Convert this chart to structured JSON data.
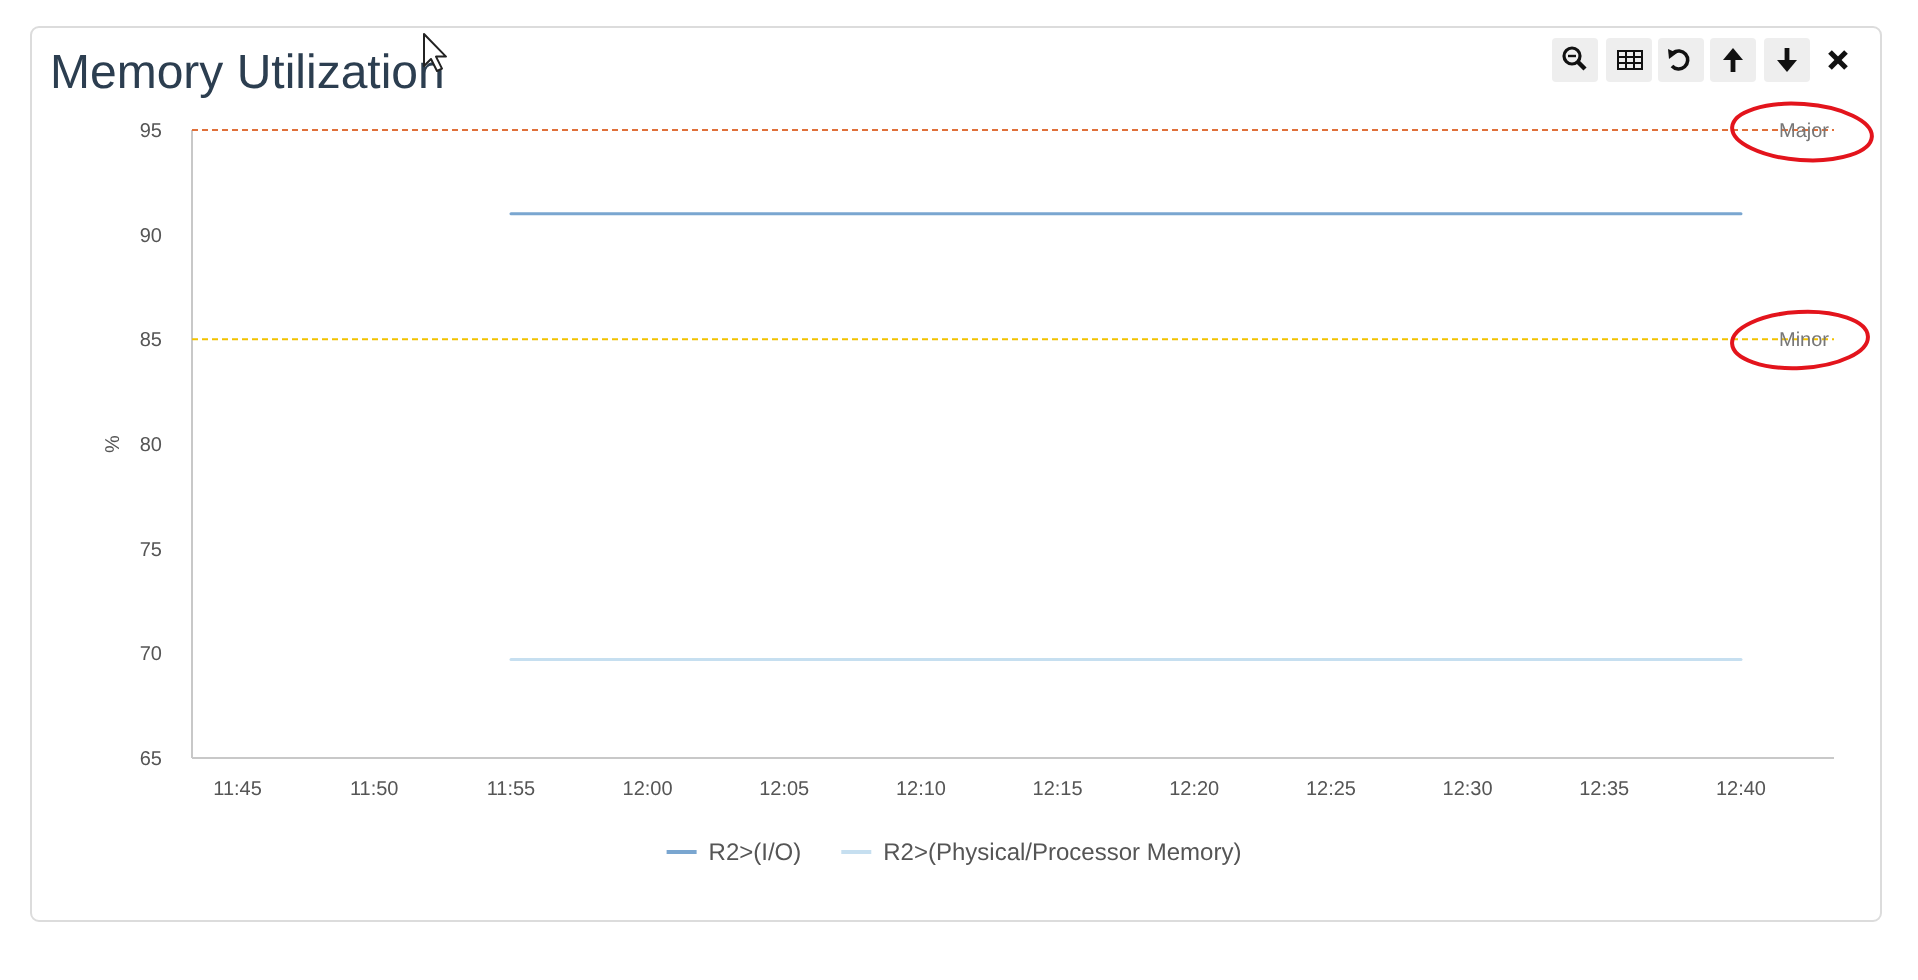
{
  "chart_data": {
    "type": "line",
    "title": "Memory Utilization",
    "ylabel": "%",
    "x": [
      11.9167,
      12.6667
    ],
    "series": [
      {
        "name": "R2>(I/O)",
        "color": "#7aa6d0",
        "values": [
          91,
          91
        ]
      },
      {
        "name": "R2>(Physical/Processor Memory)",
        "color": "#c6dff0",
        "values": [
          69.7,
          69.7
        ]
      }
    ],
    "xlim": [
      11.7222,
      12.7222
    ],
    "xticks": [
      {
        "value": 11.75,
        "label": "11:45"
      },
      {
        "value": 11.8333,
        "label": "11:50"
      },
      {
        "value": 11.9167,
        "label": "11:55"
      },
      {
        "value": 12,
        "label": "12:00"
      },
      {
        "value": 12.0833,
        "label": "12:05"
      },
      {
        "value": 12.1667,
        "label": "12:10"
      },
      {
        "value": 12.25,
        "label": "12:15"
      },
      {
        "value": 12.3333,
        "label": "12:20"
      },
      {
        "value": 12.4167,
        "label": "12:25"
      },
      {
        "value": 12.5,
        "label": "12:30"
      },
      {
        "value": 12.5833,
        "label": "12:35"
      },
      {
        "value": 12.6667,
        "label": "12:40"
      }
    ],
    "ylim": [
      65,
      95
    ],
    "yticks": [
      65,
      70,
      75,
      80,
      85,
      90,
      95
    ],
    "ref_lines": [
      {
        "axis": "y",
        "value": 95,
        "label": "Major",
        "color": "#e0703a",
        "line_style": "dashed"
      },
      {
        "axis": "y",
        "value": 85,
        "label": "Minor",
        "color": "#f2c200",
        "line_style": "dashed"
      }
    ],
    "legend": "bottom"
  }
}
